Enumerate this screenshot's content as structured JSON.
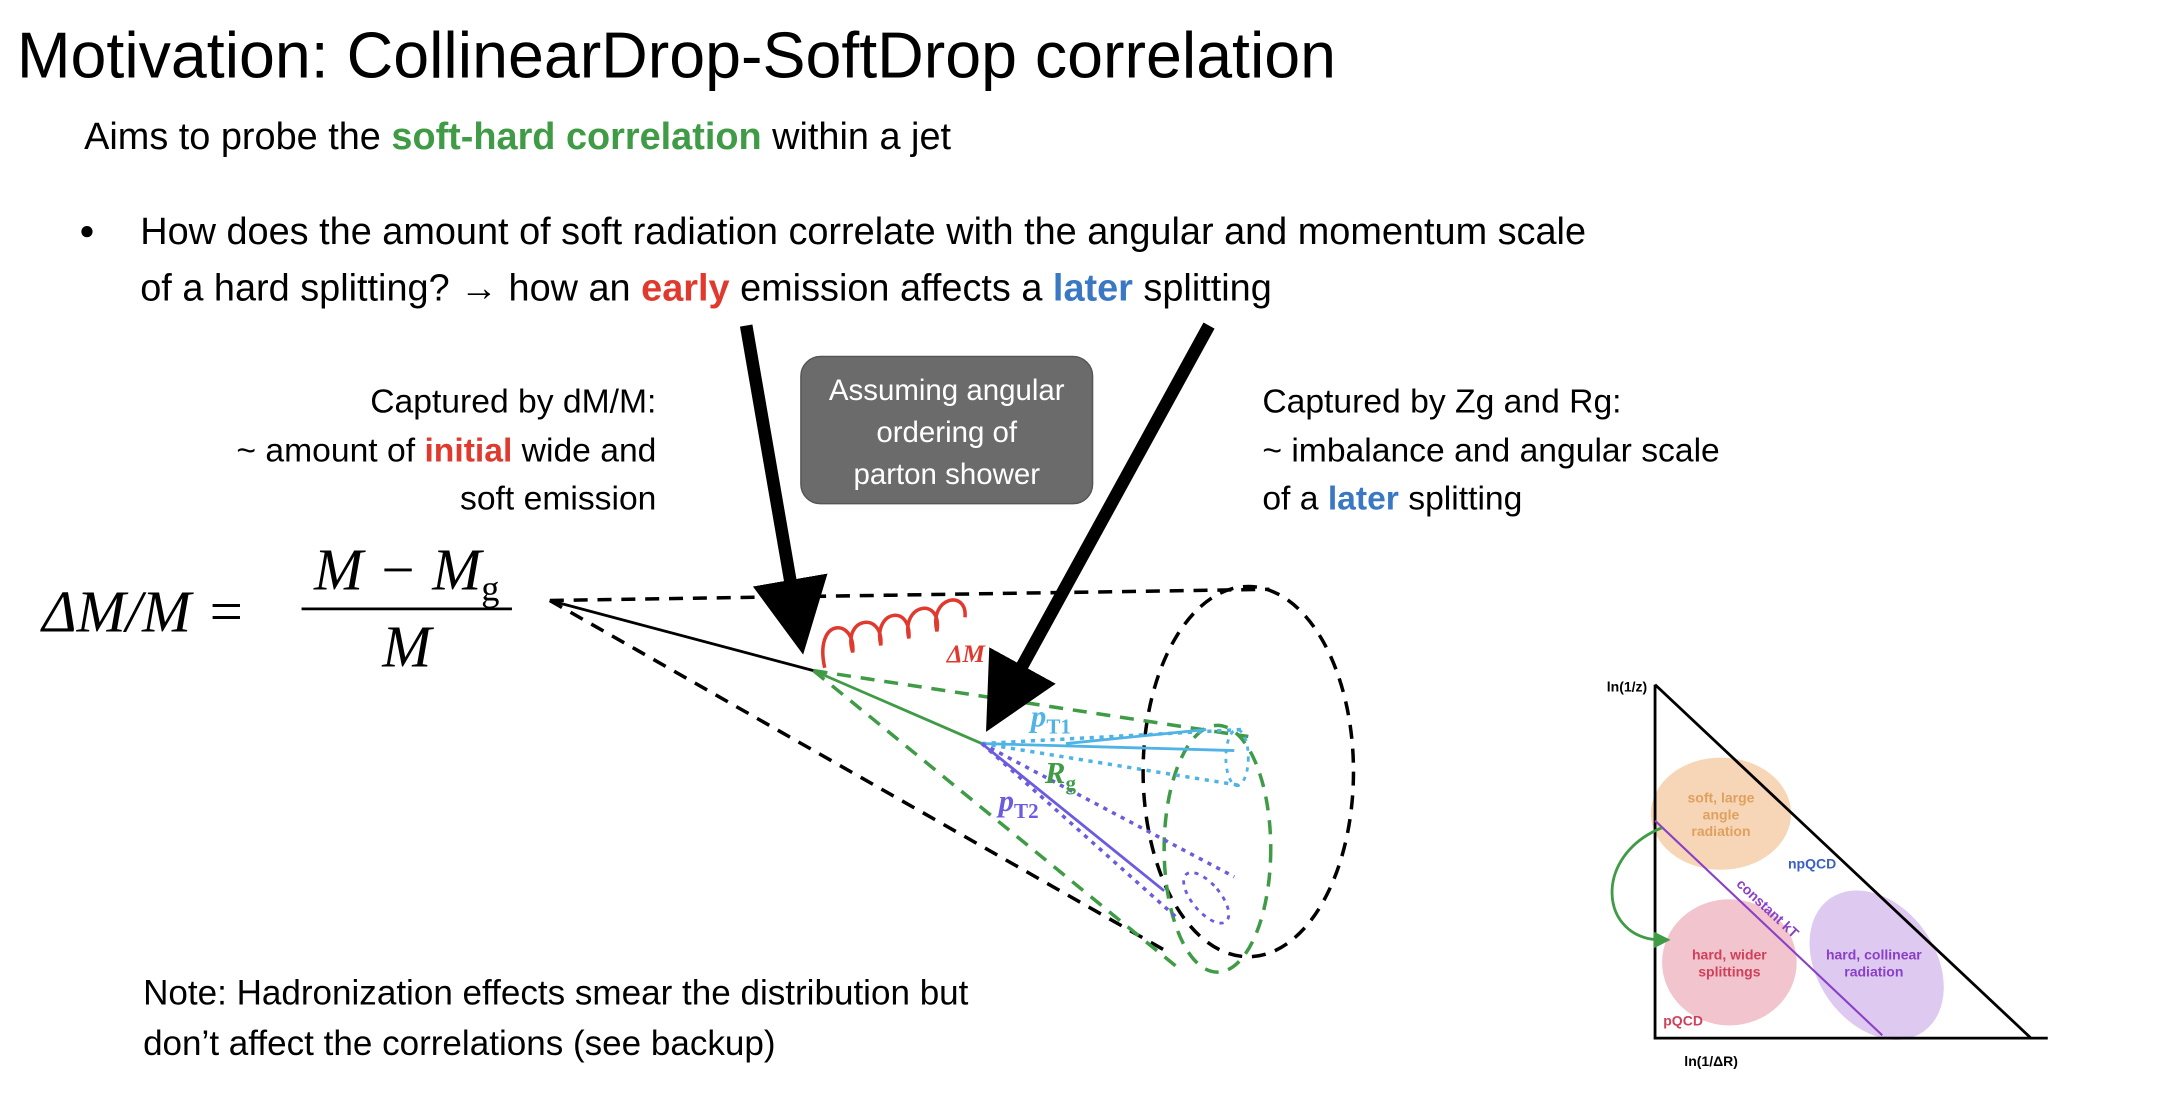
{
  "title": "Motivation: CollinearDrop-SoftDrop correlation",
  "subtitle": {
    "before": "Aims to probe the ",
    "highlight": "soft-hard correlation",
    "after": " within a jet"
  },
  "bullet": {
    "line1": "How does the amount of soft radiation correlate with the angular and momentum scale",
    "line2": {
      "a": "of a hard splitting? → how an ",
      "early": "early",
      "b": " emission affects a ",
      "later": "later",
      "c": " splitting"
    }
  },
  "left_caption": {
    "line1": "Captured by dM/M:",
    "line2": {
      "a": "~ amount of ",
      "initial": "initial",
      "b": " wide and"
    },
    "line3": "soft emission"
  },
  "box": {
    "lines": [
      "Assuming angular",
      "ordering of",
      "parton shower"
    ]
  },
  "right_caption": {
    "line1": "Captured by Zg and Rg:",
    "line2": "~ imbalance and angular scale",
    "line3": {
      "a": "of a ",
      "later": "later",
      "b": " splitting"
    }
  },
  "equation": {
    "lhs": "ΔM/M =",
    "numerator": {
      "main": "M − M",
      "sub": "g"
    },
    "denominator": "M"
  },
  "diagram": {
    "delta_m": "ΔM",
    "pt1": {
      "main": "p",
      "sub": "T1"
    },
    "rg": {
      "main": "R",
      "sub": "g"
    },
    "pt2": {
      "main": "p",
      "sub": "T2"
    }
  },
  "note": {
    "line1": "Note: Hadronization effects smear the distribution but",
    "line2": "don’t affect the correlations (see backup)"
  },
  "inset": {
    "y_axis": "ln(1/z)",
    "x_axis": "ln(1/ΔR)",
    "soft": [
      "soft, large",
      "angle",
      "radiation"
    ],
    "npqcd": "npQCD",
    "constant_kt": "constant kT",
    "hard_wide": [
      "hard, wider",
      "splittings"
    ],
    "hard_collinear": [
      "hard, collinear",
      "radiation"
    ],
    "pqcd": "pQCD"
  }
}
